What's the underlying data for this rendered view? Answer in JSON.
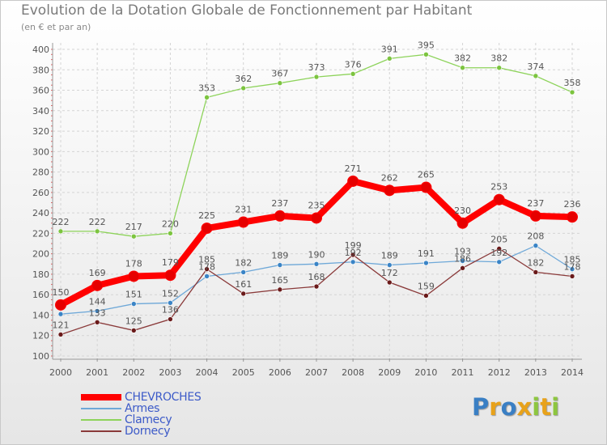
{
  "title": "Evolution de la Dotation Globale de Fonctionnement par Habitant",
  "subtitle": "(en € et par an)",
  "logo": {
    "text": "Proxiti",
    "letters": [
      {
        "char": "P",
        "color": "#3a7fc4"
      },
      {
        "char": "r",
        "color": "#e8a21a"
      },
      {
        "char": "o",
        "color": "#3a7fc4"
      },
      {
        "char": "x",
        "color": "#e8a21a"
      },
      {
        "char": "i",
        "color": "#8dc63f"
      },
      {
        "char": "t",
        "color": "#e8a21a"
      },
      {
        "char": "i",
        "color": "#8dc63f"
      }
    ]
  },
  "chart_data": {
    "type": "line",
    "title": "Evolution de la Dotation Globale de Fonctionnement par Habitant",
    "subtitle": "(en € et par an)",
    "xlabel": "",
    "ylabel": "",
    "x": [
      "2000",
      "2001",
      "2002",
      "2003",
      "2004",
      "2005",
      "2006",
      "2007",
      "2008",
      "2009",
      "2010",
      "2011",
      "2012",
      "2013",
      "2014"
    ],
    "ylim": [
      100,
      400
    ],
    "yticks": [
      100,
      120,
      140,
      160,
      180,
      200,
      220,
      240,
      260,
      280,
      300,
      320,
      340,
      360,
      380,
      400
    ],
    "grid": true,
    "legend_position": "bottom-left",
    "series": [
      {
        "name": "Clamecy",
        "color": "#8dd35a",
        "marker_color": "#7cc43f",
        "thick": false,
        "values": [
          222,
          222,
          217,
          220,
          353,
          362,
          367,
          373,
          376,
          391,
          395,
          382,
          382,
          374,
          358
        ],
        "labels": [
          "222",
          "222",
          "217",
          "220",
          "353",
          "362",
          "367",
          "373",
          "376",
          "391",
          "395",
          "382",
          "382",
          "374",
          "358"
        ]
      },
      {
        "name": "Armes",
        "color": "#6ea8d8",
        "marker_color": "#3a84c6",
        "thick": false,
        "values": [
          141,
          144,
          151,
          152,
          178,
          182,
          189,
          190,
          192,
          189,
          191,
          193,
          192,
          208,
          185
        ],
        "labels": [
          "",
          "144",
          "151",
          "152",
          "178",
          "182",
          "189",
          "190",
          "192",
          "189",
          "191",
          "193",
          "192",
          "208",
          "185"
        ]
      },
      {
        "name": "Dornecy",
        "color": "#8a3a3a",
        "marker_color": "#6a1a1a",
        "thick": false,
        "values": [
          121,
          133,
          125,
          136,
          185,
          161,
          165,
          168,
          199,
          172,
          159,
          186,
          205,
          182,
          178
        ],
        "labels": [
          "121",
          "133",
          "125",
          "136",
          "185",
          "161",
          "165",
          "168",
          "199",
          "172",
          "159",
          "186",
          "205",
          "182",
          "178"
        ]
      },
      {
        "name": "CHEVROCHES",
        "color": "#ff0000",
        "marker_color": "#e60000",
        "thick": true,
        "values": [
          150,
          169,
          178,
          179,
          225,
          231,
          237,
          235,
          271,
          262,
          265,
          230,
          253,
          237,
          236
        ],
        "labels": [
          "150",
          "169",
          "178",
          "179",
          "225",
          "231",
          "237",
          "235",
          "271",
          "262",
          "265",
          "230",
          "253",
          "237",
          "236"
        ]
      }
    ],
    "legend": [
      "CHEVROCHES",
      "Armes",
      "Clamecy",
      "Dornecy"
    ]
  }
}
